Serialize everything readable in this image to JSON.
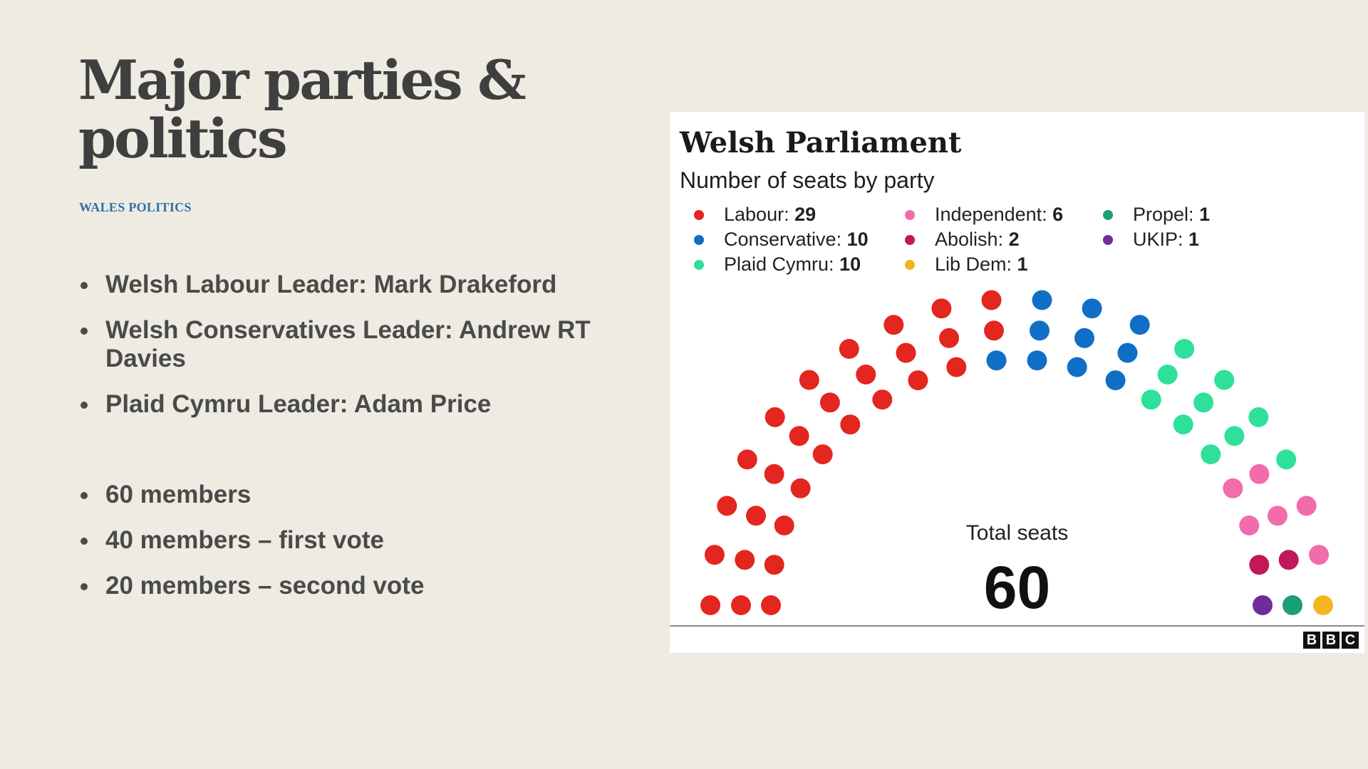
{
  "slide": {
    "title_line1": "Major parties &",
    "title_line2": "politics",
    "tag": "WALES POLITICS",
    "leader_bullets": [
      "Welsh Labour Leader: Mark Drakeford",
      "Welsh Conservatives  Leader: Andrew RT Davies",
      "Plaid Cymru Leader: Adam Price"
    ],
    "member_bullets": [
      "60 members",
      "40 members – first vote",
      "20 members – second vote"
    ]
  },
  "chart_data": {
    "type": "parliament",
    "title": "Welsh Parliament",
    "subtitle": "Number of seats by party",
    "total_label": "Total seats",
    "total": 60,
    "parties": [
      {
        "name": "Labour",
        "seats": 29,
        "color": "#e3261f"
      },
      {
        "name": "Conservative",
        "seats": 10,
        "color": "#0f6fc6"
      },
      {
        "name": "Plaid Cymru",
        "seats": 10,
        "color": "#2fe09a"
      },
      {
        "name": "Independent",
        "seats": 6,
        "color": "#f26bab"
      },
      {
        "name": "Abolish",
        "seats": 2,
        "color": "#c0185a"
      },
      {
        "name": "Lib Dem",
        "seats": 1,
        "color": "#f5b51e"
      },
      {
        "name": "Propel",
        "seats": 1,
        "color": "#1a9e78"
      },
      {
        "name": "UKIP",
        "seats": 1,
        "color": "#6e2c9c"
      }
    ],
    "legend_separator": ": ",
    "source": "BBC"
  }
}
